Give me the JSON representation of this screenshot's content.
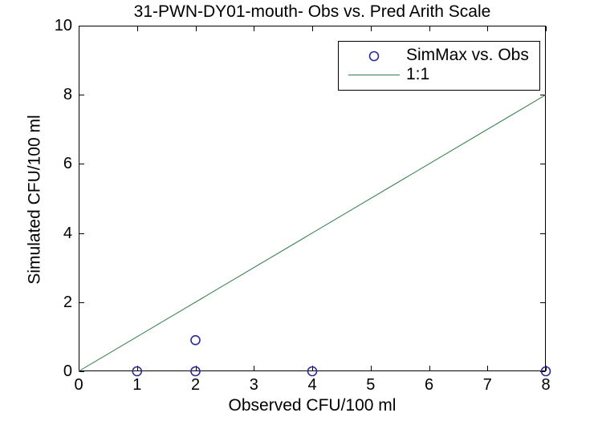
{
  "figure": {
    "background": "#FFFFFF",
    "text_color": "#000000",
    "axis_color": "#000000"
  },
  "chart_data": {
    "type": "scatter",
    "title": "31-PWN-DY01-mouth- Obs vs. Pred Arith Scale",
    "xlabel": "Observed CFU/100 ml",
    "ylabel": "Simulated CFU/100 ml",
    "xlim": [
      0,
      8
    ],
    "ylim": [
      0,
      10
    ],
    "xticks": [
      0,
      1,
      2,
      3,
      4,
      5,
      6,
      7,
      8
    ],
    "yticks": [
      0,
      2,
      4,
      6,
      8,
      10
    ],
    "grid": false,
    "legend_position": "top-right",
    "series": [
      {
        "name": "SimMax vs. Obs",
        "plot_type": "scatter",
        "marker": "open-circle",
        "color": "#2D2D91",
        "points": [
          [
            1,
            0
          ],
          [
            2,
            0
          ],
          [
            2,
            0.9
          ],
          [
            4,
            0
          ],
          [
            8,
            0
          ]
        ]
      },
      {
        "name": "1:1",
        "plot_type": "line",
        "color": "#2E7D45",
        "points": [
          [
            0,
            0
          ],
          [
            8,
            8
          ]
        ]
      }
    ]
  }
}
